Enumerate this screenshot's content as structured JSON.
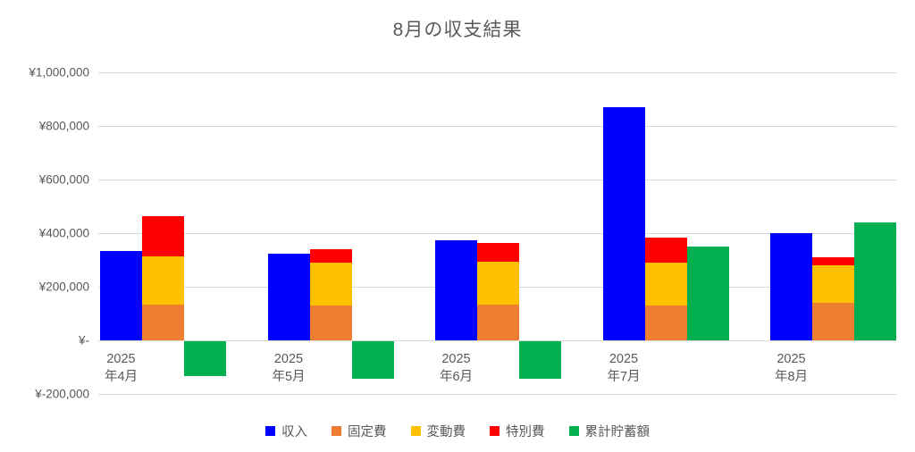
{
  "title": "8月の収支結果",
  "chart_data": {
    "type": "bar",
    "title": "8月の収支結果",
    "categories": [
      "2025年4月",
      "2025年5月",
      "2025年6月",
      "2025年7月",
      "2025年8月"
    ],
    "x_tick_lines": [
      [
        "2025",
        "年4月"
      ],
      [
        "2025",
        "年5月"
      ],
      [
        "2025",
        "年6月"
      ],
      [
        "2025",
        "年7月"
      ],
      [
        "2025",
        "年8月"
      ]
    ],
    "series": [
      {
        "name": "収入",
        "role": "standalone",
        "color": "#0000ff",
        "values": [
          335000,
          325000,
          375000,
          870000,
          400000
        ]
      },
      {
        "name": "固定費",
        "role": "stacked",
        "color": "#ed7d31",
        "values": [
          135000,
          130000,
          135000,
          130000,
          140000
        ]
      },
      {
        "name": "変動費",
        "role": "stacked",
        "color": "#ffc000",
        "values": [
          180000,
          160000,
          160000,
          160000,
          140000
        ]
      },
      {
        "name": "特別費",
        "role": "stacked",
        "color": "#ff0000",
        "values": [
          150000,
          50000,
          70000,
          95000,
          30000
        ]
      },
      {
        "name": "累計貯蓄額",
        "role": "standalone",
        "color": "#00b050",
        "values": [
          -130000,
          -140000,
          -140000,
          350000,
          440000
        ]
      }
    ],
    "y_ticks": [
      {
        "value": 1000000,
        "label": "¥1,000,000"
      },
      {
        "value": 800000,
        "label": "¥800,000"
      },
      {
        "value": 600000,
        "label": "¥600,000"
      },
      {
        "value": 400000,
        "label": "¥400,000"
      },
      {
        "value": 200000,
        "label": "¥200,000"
      },
      {
        "value": 0,
        "label": "¥-"
      },
      {
        "value": -200000,
        "label": "¥-200,000"
      }
    ],
    "ylim": [
      -200000,
      1000000
    ],
    "grid": "horizontal",
    "legend_position": "bottom",
    "legend": [
      "収入",
      "固定費",
      "変動費",
      "特別費",
      "累計貯蓄額"
    ]
  },
  "colors": {
    "background": "#ffffff",
    "text": "#595959",
    "gridline": "#d9d9d9",
    "income": "#0000ff",
    "fixed_cost": "#ed7d31",
    "variable_cost": "#ffc000",
    "special_cost": "#ff0000",
    "savings": "#00b050"
  }
}
